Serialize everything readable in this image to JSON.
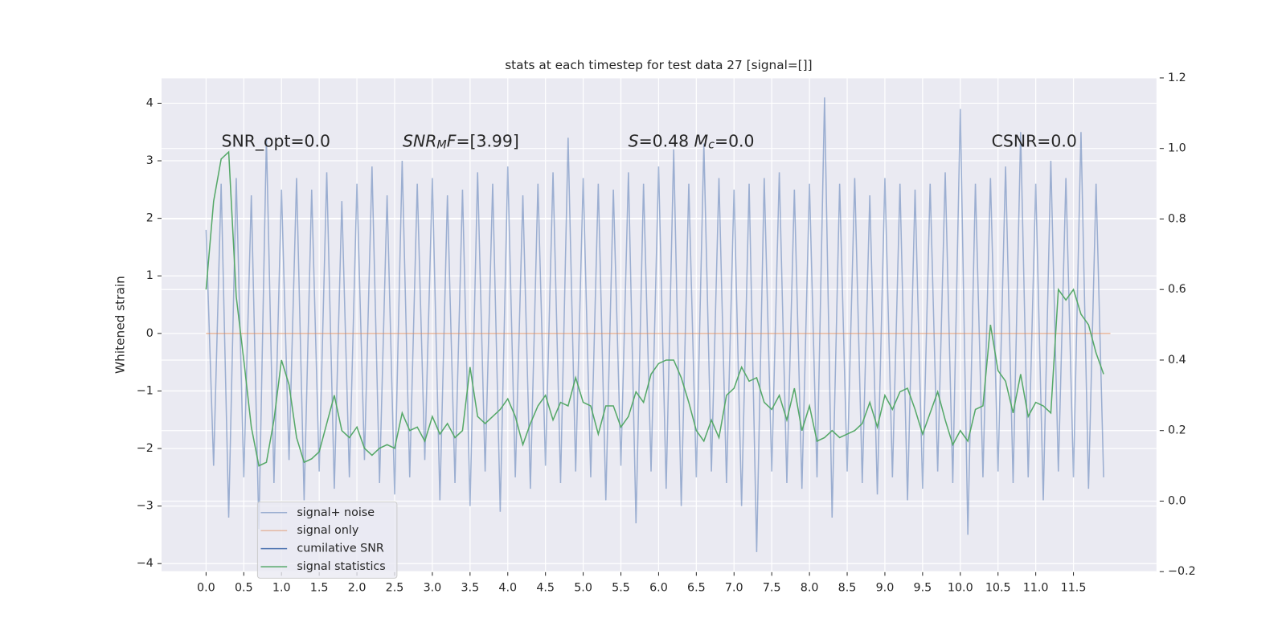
{
  "chart_data": {
    "type": "line",
    "title": "stats at each timestep for test data 27 [signal=[]]",
    "ylabel": "Whitened strain",
    "annotations": [
      {
        "parts": [
          {
            "text": "SNR_opt=0.0"
          }
        ]
      },
      {
        "parts": [
          {
            "text": "SNR",
            "italic": true
          },
          {
            "text": "M",
            "italic": true,
            "sub": true
          },
          {
            "text": "F",
            "italic": true
          },
          {
            "text": "=[3.99]"
          }
        ]
      },
      {
        "parts": [
          {
            "text": "S",
            "italic": true
          },
          {
            "text": "=0.48   "
          },
          {
            "text": "M",
            "italic": true
          },
          {
            "text": "c",
            "italic": true,
            "sub": true
          },
          {
            "text": "=0.0"
          }
        ]
      },
      {
        "parts": [
          {
            "text": "CSNR=0.0"
          }
        ]
      }
    ],
    "x": [
      0,
      0.1,
      0.2,
      0.3,
      0.4,
      0.5,
      0.6,
      0.7,
      0.8,
      0.9,
      1.0,
      1.1,
      1.2,
      1.3,
      1.4,
      1.5,
      1.6,
      1.7,
      1.8,
      1.9,
      2.0,
      2.1,
      2.2,
      2.3,
      2.4,
      2.5,
      2.6,
      2.7,
      2.8,
      2.9,
      3.0,
      3.1,
      3.2,
      3.3,
      3.4,
      3.5,
      3.6,
      3.7,
      3.8,
      3.9,
      4.0,
      4.1,
      4.2,
      4.3,
      4.4,
      4.5,
      4.6,
      4.7,
      4.8,
      4.9,
      5.0,
      5.1,
      5.2,
      5.3,
      5.4,
      5.5,
      5.6,
      5.7,
      5.8,
      5.9,
      6.0,
      6.1,
      6.2,
      6.3,
      6.4,
      6.5,
      6.6,
      6.7,
      6.8,
      6.9,
      7.0,
      7.1,
      7.2,
      7.3,
      7.4,
      7.5,
      7.6,
      7.7,
      7.8,
      7.9,
      8.0,
      8.1,
      8.2,
      8.3,
      8.4,
      8.5,
      8.6,
      8.7,
      8.8,
      8.9,
      9.0,
      9.1,
      9.2,
      9.3,
      9.4,
      9.5,
      9.6,
      9.7,
      9.8,
      9.9,
      10.0,
      10.1,
      10.2,
      10.3,
      10.4,
      10.5,
      10.6,
      10.7,
      10.8,
      10.9,
      11.0,
      11.1,
      11.2,
      11.3,
      11.4,
      11.5,
      11.6,
      11.7,
      11.8,
      11.9
    ],
    "series": [
      {
        "name": "signal+ noise",
        "color": "#4c72b0",
        "opacity": 0.5,
        "values": [
          1.8,
          -2.3,
          2.6,
          -3.2,
          2.7,
          -2.5,
          2.4,
          -3.4,
          3.4,
          -2.6,
          2.5,
          -2.2,
          2.7,
          -2.9,
          2.5,
          -2.4,
          2.8,
          -2.7,
          2.3,
          -2.5,
          2.6,
          -2.2,
          2.9,
          -2.6,
          2.4,
          -2.8,
          3.0,
          -2.5,
          2.6,
          -2.2,
          2.7,
          -2.9,
          2.4,
          -2.6,
          2.5,
          -3.0,
          2.8,
          -2.4,
          2.6,
          -3.1,
          2.9,
          -2.5,
          2.4,
          -2.7,
          2.6,
          -2.3,
          2.8,
          -2.6,
          3.4,
          -2.4,
          2.7,
          -2.5,
          2.6,
          -2.9,
          2.5,
          -2.3,
          2.8,
          -3.3,
          2.6,
          -2.4,
          2.9,
          -2.7,
          3.2,
          -3.0,
          2.6,
          -2.5,
          3.3,
          -2.4,
          2.7,
          -2.6,
          2.5,
          -3.0,
          2.6,
          -3.8,
          2.7,
          -2.4,
          2.8,
          -2.6,
          2.5,
          -2.7,
          2.6,
          -2.5,
          4.1,
          -3.2,
          2.6,
          -2.4,
          2.7,
          -2.6,
          2.4,
          -2.8,
          2.7,
          -2.5,
          2.6,
          -2.9,
          2.5,
          -2.7,
          2.6,
          -2.4,
          2.8,
          -2.6,
          3.9,
          -3.5,
          2.6,
          -2.5,
          2.7,
          -2.4,
          2.9,
          -2.6,
          3.5,
          -2.5,
          2.6,
          -2.9,
          3.0,
          -2.4,
          2.7,
          -2.5,
          3.5,
          -2.7,
          2.6,
          -2.5
        ]
      },
      {
        "name": "signal only",
        "color": "#dd8452",
        "opacity": 0.5,
        "x": [
          0,
          11.99
        ],
        "values": [
          0,
          0
        ]
      },
      {
        "name": "cumilative SNR",
        "color": "#4c72b0"
      },
      {
        "name": "signal statistics",
        "color": "#55a868",
        "axis": "y2",
        "values": [
          0.6,
          0.85,
          0.97,
          0.99,
          0.58,
          0.4,
          0.21,
          0.1,
          0.11,
          0.23,
          0.4,
          0.33,
          0.18,
          0.11,
          0.12,
          0.14,
          0.22,
          0.3,
          0.2,
          0.18,
          0.21,
          0.15,
          0.13,
          0.15,
          0.16,
          0.15,
          0.25,
          0.2,
          0.21,
          0.17,
          0.24,
          0.19,
          0.22,
          0.18,
          0.2,
          0.38,
          0.24,
          0.22,
          0.24,
          0.26,
          0.29,
          0.24,
          0.16,
          0.22,
          0.27,
          0.3,
          0.23,
          0.28,
          0.27,
          0.35,
          0.28,
          0.27,
          0.19,
          0.27,
          0.27,
          0.21,
          0.24,
          0.31,
          0.28,
          0.36,
          0.39,
          0.4,
          0.4,
          0.35,
          0.28,
          0.2,
          0.17,
          0.23,
          0.18,
          0.3,
          0.32,
          0.38,
          0.34,
          0.35,
          0.28,
          0.26,
          0.3,
          0.23,
          0.32,
          0.2,
          0.27,
          0.17,
          0.18,
          0.2,
          0.18,
          0.19,
          0.2,
          0.22,
          0.28,
          0.21,
          0.3,
          0.26,
          0.31,
          0.32,
          0.26,
          0.19,
          0.25,
          0.31,
          0.23,
          0.16,
          0.2,
          0.17,
          0.26,
          0.27,
          0.5,
          0.37,
          0.34,
          0.25,
          0.36,
          0.24,
          0.28,
          0.27,
          0.25,
          0.6,
          0.57,
          0.6,
          0.53,
          0.5,
          0.42,
          0.36
        ]
      }
    ],
    "xlim": [
      -0.59,
      12.6
    ],
    "xticks": [
      {
        "value": 0,
        "label": "0.0"
      },
      {
        "value": 0.5,
        "label": "0.5"
      },
      {
        "value": 1,
        "label": "1.0"
      },
      {
        "value": 1.5,
        "label": "1.5"
      },
      {
        "value": 2,
        "label": "2.0"
      },
      {
        "value": 2.5,
        "label": "2.5"
      },
      {
        "value": 3,
        "label": "3.0"
      },
      {
        "value": 3.5,
        "label": "3.5"
      },
      {
        "value": 4,
        "label": "4.0"
      },
      {
        "value": 4.5,
        "label": "4.5"
      },
      {
        "value": 5,
        "label": "5.0"
      },
      {
        "value": 5.5,
        "label": "5.5"
      },
      {
        "value": 6,
        "label": "6.0"
      },
      {
        "value": 6.5,
        "label": "6.5"
      },
      {
        "value": 7,
        "label": "7.0"
      },
      {
        "value": 7.5,
        "label": "7.5"
      },
      {
        "value": 8,
        "label": "8.0"
      },
      {
        "value": 8.5,
        "label": "8.5"
      },
      {
        "value": 9,
        "label": "9.0"
      },
      {
        "value": 9.5,
        "label": "9.5"
      },
      {
        "value": 10,
        "label": "10.0"
      },
      {
        "value": 10.5,
        "label": "10.5"
      },
      {
        "value": 11,
        "label": "11.0"
      },
      {
        "value": 11.5,
        "label": "11.5"
      }
    ],
    "ylim": [
      -4.14,
      4.44
    ],
    "yticks": [
      {
        "value": -4,
        "label": "−4"
      },
      {
        "value": -3,
        "label": "−3"
      },
      {
        "value": -2,
        "label": "−2"
      },
      {
        "value": -1,
        "label": "−1"
      },
      0,
      1,
      2,
      3,
      4
    ],
    "y2lim": [
      -0.2,
      1.2
    ],
    "y2ticks": [
      {
        "value": -0.2,
        "label": "−0.2"
      },
      {
        "value": 0,
        "label": "0.0"
      },
      0.2,
      0.4,
      0.6,
      0.8,
      {
        "value": 1,
        "label": "1.0"
      },
      1.2
    ],
    "grid": true,
    "legend": "lower left"
  }
}
